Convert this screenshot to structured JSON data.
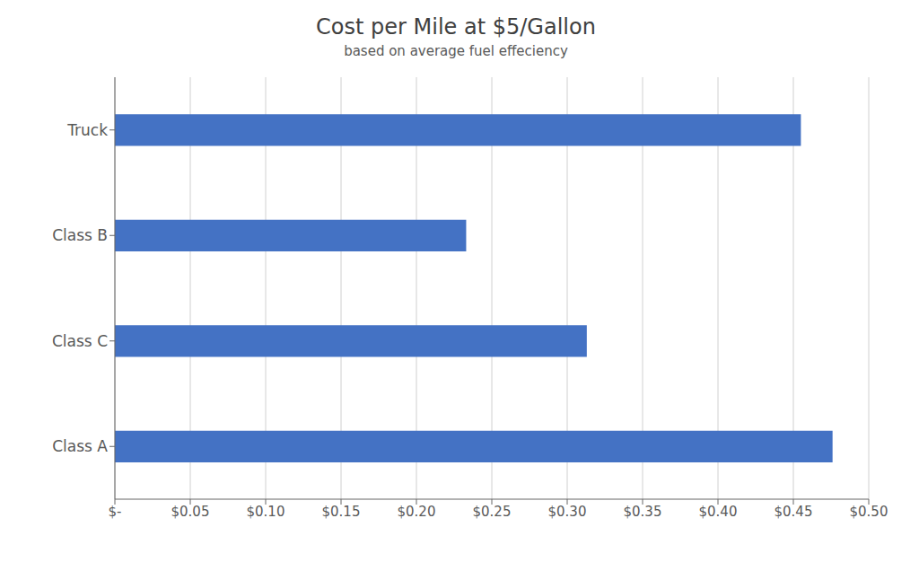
{
  "chart_data": {
    "type": "bar",
    "orientation": "horizontal",
    "title": "Cost per Mile at $5/Gallon",
    "subtitle": "based on average fuel effeciency",
    "categories": [
      "Class A",
      "Class C",
      "Class B",
      "Truck"
    ],
    "values": [
      0.476,
      0.313,
      0.233,
      0.455
    ],
    "color": "#4472C4",
    "xlim": [
      0,
      0.5
    ],
    "xticks": [
      {
        "value": 0,
        "label": "$-"
      },
      {
        "value": 0.05,
        "label": "$0.05"
      },
      {
        "value": 0.1,
        "label": "$0.10"
      },
      {
        "value": 0.15,
        "label": "$0.15"
      },
      {
        "value": 0.2,
        "label": "$0.20"
      },
      {
        "value": 0.25,
        "label": "$0.25"
      },
      {
        "value": 0.3,
        "label": "$0.30"
      },
      {
        "value": 0.35,
        "label": "$0.35"
      },
      {
        "value": 0.4,
        "label": "$0.40"
      },
      {
        "value": 0.45,
        "label": "$0.45"
      },
      {
        "value": 0.5,
        "label": "$0.50"
      }
    ],
    "grid": true
  }
}
